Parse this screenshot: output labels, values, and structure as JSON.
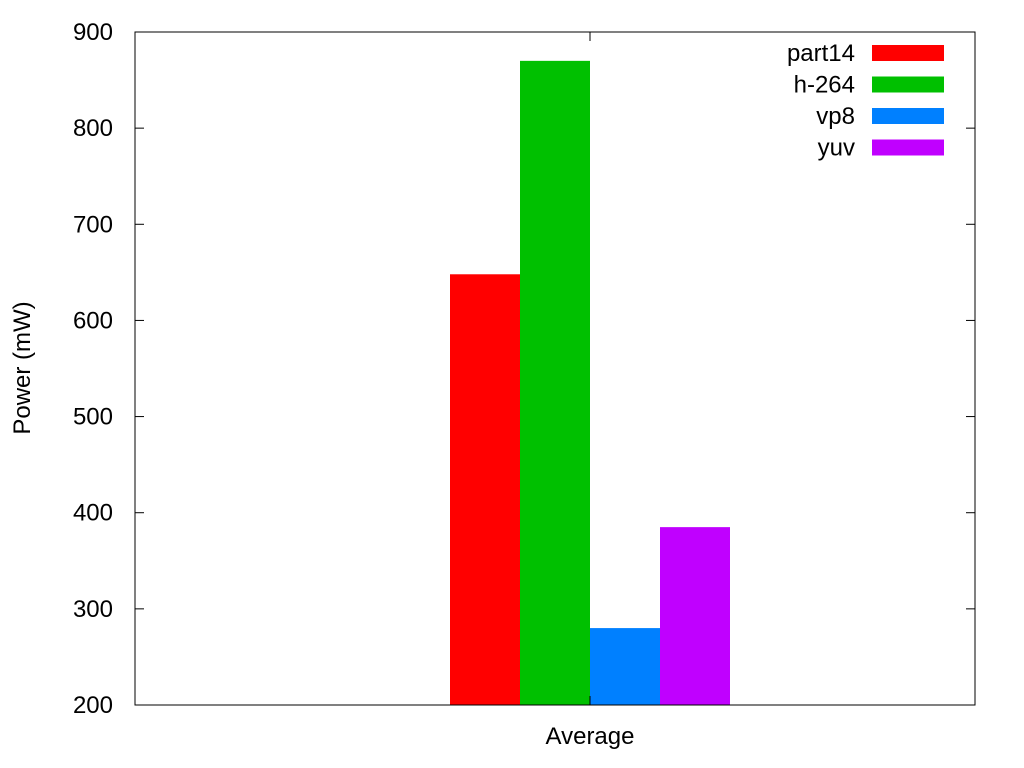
{
  "chart_data": {
    "type": "bar",
    "title": "",
    "xlabel": "",
    "ylabel": "Power (mW)",
    "categories": [
      "Average"
    ],
    "ylim": [
      200,
      900
    ],
    "yticks": [
      200,
      300,
      400,
      500,
      600,
      700,
      800,
      900
    ],
    "grid": false,
    "legend_position": "top-right",
    "series": [
      {
        "name": "part14",
        "values": [
          648
        ],
        "color": "#ff0000"
      },
      {
        "name": "h-264",
        "values": [
          870
        ],
        "color": "#00c000"
      },
      {
        "name": "vp8",
        "values": [
          280
        ],
        "color": "#0080ff"
      },
      {
        "name": "yuv",
        "values": [
          385
        ],
        "color": "#c000ff"
      }
    ]
  }
}
